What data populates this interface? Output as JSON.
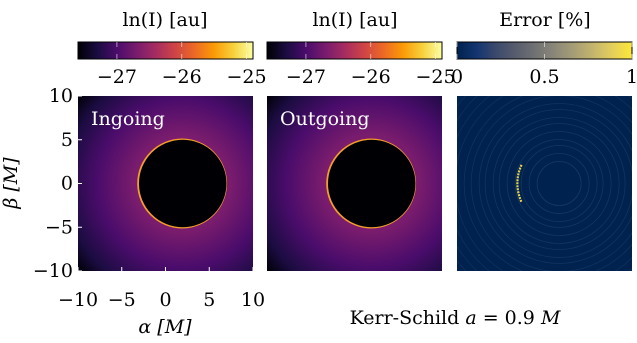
{
  "colors": {
    "inferno": [
      "#000004",
      "#1b0c41",
      "#4a0c6b",
      "#781c6d",
      "#a52c60",
      "#cf4446",
      "#ed6925",
      "#fb9b06",
      "#f7d13d",
      "#fcffa4"
    ],
    "cividis": [
      "#00224e",
      "#123570",
      "#3b496c",
      "#575d6d",
      "#707173",
      "#8a8779",
      "#a69d75",
      "#c4b56c",
      "#e4cf5b",
      "#fee838"
    ],
    "ring": "#f59e2a",
    "error_streak": "#e6d24a"
  },
  "chart_data": [
    {
      "type": "heatmap",
      "panel": "ingoing",
      "label": "Ingoing",
      "colorbar_title": "ln(I) [au]",
      "colorbar_ticks": [
        -27,
        -26,
        -25
      ],
      "colorbar_range": [
        -27.6,
        -24.9
      ],
      "xlabel": "α [M]",
      "ylabel": "β [M]",
      "xticks": [
        -10,
        -5,
        0,
        5,
        10
      ],
      "yticks": [
        10,
        5,
        0,
        -5,
        -10
      ],
      "xlim": [
        -10,
        10
      ],
      "ylim": [
        -10,
        10
      ],
      "shadow": {
        "center_alpha": 1.9,
        "center_beta": 0,
        "radius": 5.0
      },
      "ring_peak_log_intensity": -24.9,
      "background_log_intensity": -27.4
    },
    {
      "type": "heatmap",
      "panel": "outgoing",
      "label": "Outgoing",
      "colorbar_title": "ln(I) [au]",
      "colorbar_ticks": [
        -27,
        -26,
        -25
      ],
      "colorbar_range": [
        -27.6,
        -24.9
      ],
      "xlim": [
        -10,
        10
      ],
      "ylim": [
        -10,
        10
      ],
      "shadow": {
        "center_alpha": 1.9,
        "center_beta": 0,
        "radius": 5.0
      },
      "ring_peak_log_intensity": -24.9,
      "background_log_intensity": -27.4
    },
    {
      "type": "heatmap",
      "panel": "error",
      "colorbar_title": "Error [%]",
      "colorbar_ticks": [
        "0",
        "0.5",
        "1"
      ],
      "colorbar_range": [
        0,
        1
      ],
      "xlim": [
        -10,
        10
      ],
      "ylim": [
        -10,
        10
      ],
      "max_error_region": "left edge of shadow",
      "max_error_percent": 1
    }
  ],
  "caption": {
    "prefix": "Kerr-Schild ",
    "var": "a",
    "mid": " = 0.9 ",
    "unit": "M"
  }
}
